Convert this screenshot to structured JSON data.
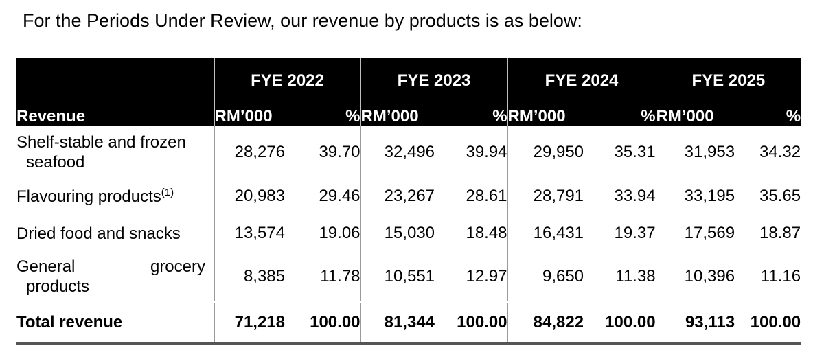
{
  "intro_text": "For the Periods Under Review, our revenue by products is as below:",
  "table": {
    "years": [
      "FYE 2022",
      "FYE 2023",
      "FYE 2024",
      "FYE 2025"
    ],
    "revenue_header": "Revenue",
    "amount_header": "RM’000",
    "percent_header": "%",
    "rows": [
      {
        "label_line1_a": "Shelf-stable and frozen",
        "label_line1_b": "",
        "label_line2": "seafood",
        "values": [
          "28,276",
          "39.70",
          "32,496",
          "39.94",
          "29,950",
          "35.31",
          "31,953",
          "34.32"
        ]
      },
      {
        "label": "Flavouring products",
        "footnote": "(1)",
        "values": [
          "20,983",
          "29.46",
          "23,267",
          "28.61",
          "28,791",
          "33.94",
          "33,195",
          "35.65"
        ]
      },
      {
        "label": "Dried food and snacks",
        "values": [
          "13,574",
          "19.06",
          "15,030",
          "18.48",
          "16,431",
          "19.37",
          "17,569",
          "18.87"
        ]
      },
      {
        "label_line1_a": "General",
        "label_line1_b": "grocery",
        "label_line2": "products",
        "values": [
          "8,385",
          "11.78",
          "10,551",
          "12.97",
          "9,650",
          "11.38",
          "10,396",
          "11.16"
        ]
      }
    ],
    "total": {
      "label": "Total revenue",
      "values": [
        "71,218",
        "100.00",
        "81,344",
        "100.00",
        "84,822",
        "100.00",
        "93,113",
        "100.00"
      ]
    }
  }
}
